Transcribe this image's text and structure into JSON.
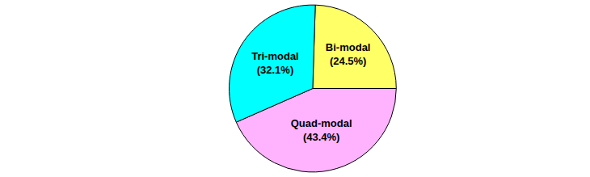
{
  "chart_data": {
    "type": "pie",
    "categories": [
      "Quad-modal",
      "Bi-modal",
      "Tri-modal"
    ],
    "values": [
      43.4,
      24.5,
      32.1
    ],
    "value_labels": [
      "(43.4%)",
      "(24.5%)",
      "(32.1%)"
    ],
    "colors": [
      "#ffb3ff",
      "#ffff66",
      "#00ffff"
    ],
    "data_labels": true
  }
}
